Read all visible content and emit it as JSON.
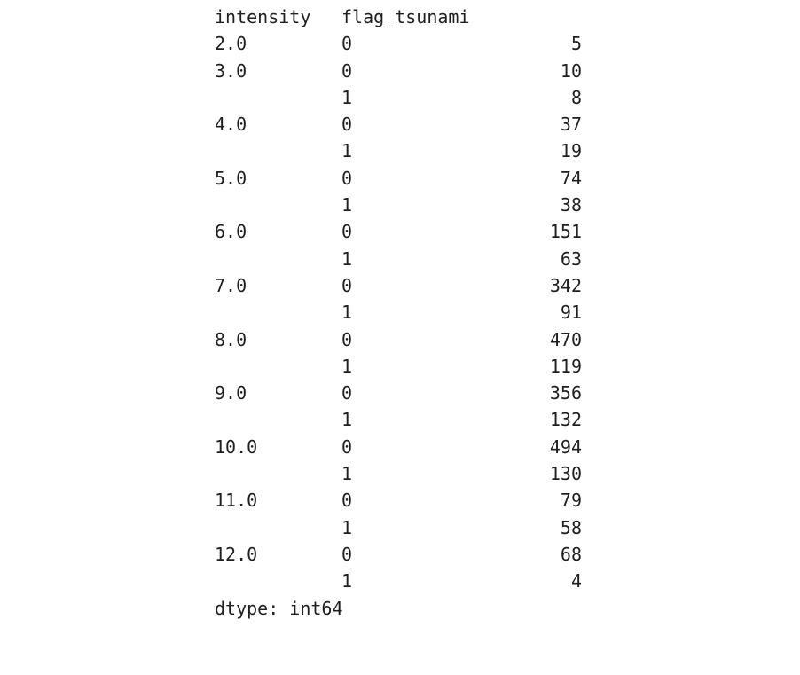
{
  "header": {
    "index_name_1": "intensity",
    "index_name_2": "flag_tsunami"
  },
  "rows": [
    {
      "intensity": "2.0",
      "flag_tsunami": "0",
      "count": "5"
    },
    {
      "intensity": "3.0",
      "flag_tsunami": "0",
      "count": "10"
    },
    {
      "intensity": "",
      "flag_tsunami": "1",
      "count": "8"
    },
    {
      "intensity": "4.0",
      "flag_tsunami": "0",
      "count": "37"
    },
    {
      "intensity": "",
      "flag_tsunami": "1",
      "count": "19"
    },
    {
      "intensity": "5.0",
      "flag_tsunami": "0",
      "count": "74"
    },
    {
      "intensity": "",
      "flag_tsunami": "1",
      "count": "38"
    },
    {
      "intensity": "6.0",
      "flag_tsunami": "0",
      "count": "151"
    },
    {
      "intensity": "",
      "flag_tsunami": "1",
      "count": "63"
    },
    {
      "intensity": "7.0",
      "flag_tsunami": "0",
      "count": "342"
    },
    {
      "intensity": "",
      "flag_tsunami": "1",
      "count": "91"
    },
    {
      "intensity": "8.0",
      "flag_tsunami": "0",
      "count": "470"
    },
    {
      "intensity": "",
      "flag_tsunami": "1",
      "count": "119"
    },
    {
      "intensity": "9.0",
      "flag_tsunami": "0",
      "count": "356"
    },
    {
      "intensity": "",
      "flag_tsunami": "1",
      "count": "132"
    },
    {
      "intensity": "10.0",
      "flag_tsunami": "0",
      "count": "494"
    },
    {
      "intensity": "",
      "flag_tsunami": "1",
      "count": "130"
    },
    {
      "intensity": "11.0",
      "flag_tsunami": "0",
      "count": "79"
    },
    {
      "intensity": "",
      "flag_tsunami": "1",
      "count": "58"
    },
    {
      "intensity": "12.0",
      "flag_tsunami": "0",
      "count": "68"
    },
    {
      "intensity": "",
      "flag_tsunami": "1",
      "count": "4"
    }
  ],
  "footer": {
    "dtype_text": "dtype: int64"
  }
}
